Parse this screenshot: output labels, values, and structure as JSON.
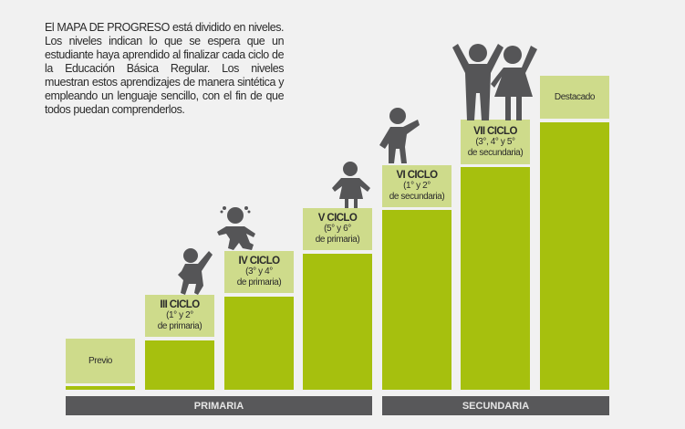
{
  "intro_text": "El MAPA DE PROGRESO está dividido en niveles. Los niveles indican lo que se espera que un estudiante haya aprendido al finalizar cada ciclo de la Educación Básica Regular. Los niveles muestran estos aprendizajes de manera sintética y empleando un lenguaje sencillo, con el fin de que todos puedan comprenderlos.",
  "levels": [
    {
      "title": "",
      "line1": "Previo",
      "line2": ""
    },
    {
      "title": "III CICLO",
      "line1": "(1° y 2°",
      "line2": "de primaria)"
    },
    {
      "title": "IV CICLO",
      "line1": "(3° y 4°",
      "line2": "de primaria)"
    },
    {
      "title": "V CICLO",
      "line1": "(5° y 6°",
      "line2": "de primaria)"
    },
    {
      "title": "VI CICLO",
      "line1": "(1° y 2°",
      "line2": "de secundaria)"
    },
    {
      "title": "VII CICLO",
      "line1": "(3°, 4° y 5°",
      "line2": "de secundaria)"
    },
    {
      "title": "",
      "line1": "Destacado",
      "line2": ""
    }
  ],
  "bands": {
    "primaria": "PRIMARIA",
    "secundaria": "SECUNDARIA"
  },
  "colors": {
    "label_green": "#cedb8b",
    "bar_green": "#a6c00e",
    "band_gray": "#58585a",
    "figure_gray": "#555557"
  }
}
